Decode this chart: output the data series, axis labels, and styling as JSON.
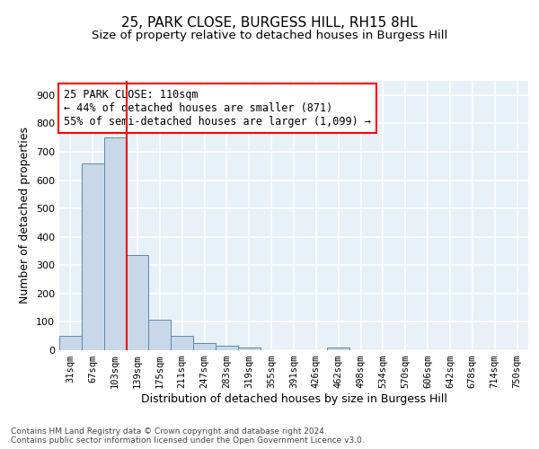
{
  "title": "25, PARK CLOSE, BURGESS HILL, RH15 8HL",
  "subtitle": "Size of property relative to detached houses in Burgess Hill",
  "xlabel": "Distribution of detached houses by size in Burgess Hill",
  "ylabel": "Number of detached properties",
  "footnote1": "Contains HM Land Registry data © Crown copyright and database right 2024.",
  "footnote2": "Contains public sector information licensed under the Open Government Licence v3.0.",
  "bin_labels": [
    "31sqm",
    "67sqm",
    "103sqm",
    "139sqm",
    "175sqm",
    "211sqm",
    "247sqm",
    "283sqm",
    "319sqm",
    "355sqm",
    "391sqm",
    "426sqm",
    "462sqm",
    "498sqm",
    "534sqm",
    "570sqm",
    "606sqm",
    "642sqm",
    "678sqm",
    "714sqm",
    "750sqm"
  ],
  "bar_heights": [
    50,
    660,
    750,
    335,
    107,
    50,
    25,
    15,
    10,
    0,
    0,
    0,
    8,
    0,
    0,
    0,
    0,
    0,
    0,
    0,
    0
  ],
  "bar_color": "#c8d8e8",
  "bar_edge_color": "#5a8ab0",
  "vline_color": "red",
  "annotation_title": "25 PARK CLOSE: 110sqm",
  "annotation_line1": "← 44% of detached houses are smaller (871)",
  "annotation_line2": "55% of semi-detached houses are larger (1,099) →",
  "annotation_box_color": "white",
  "annotation_box_edge": "red",
  "ylim": [
    0,
    950
  ],
  "yticks": [
    0,
    100,
    200,
    300,
    400,
    500,
    600,
    700,
    800,
    900
  ],
  "bg_color": "#e8f0f8",
  "grid_color": "white",
  "title_fontsize": 11,
  "subtitle_fontsize": 9.5,
  "axis_label_fontsize": 9,
  "tick_fontsize": 7.5,
  "annotation_fontsize": 8.5,
  "footnote_fontsize": 6.5
}
